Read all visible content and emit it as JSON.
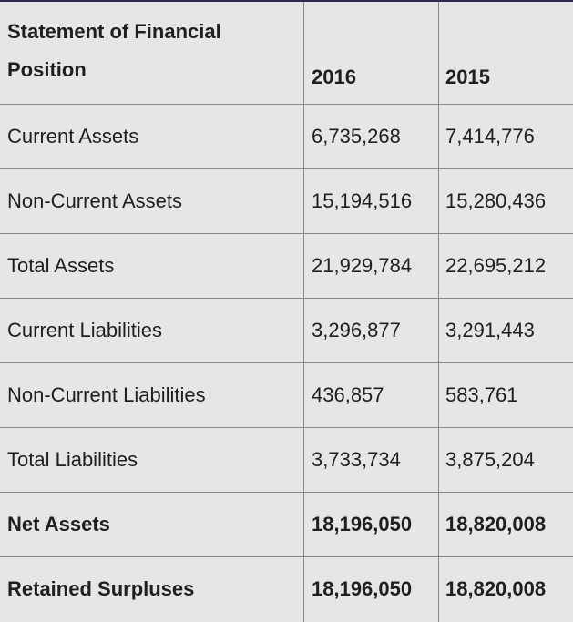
{
  "table": {
    "header": {
      "label": "Statement of Financial Position",
      "col_2016": "2016",
      "col_2015": "2015"
    },
    "rows": [
      {
        "label": "Current Assets",
        "v2016": "6,735,268",
        "v2015": "7,414,776"
      },
      {
        "label": "Non-Current Assets",
        "v2016": "15,194,516",
        "v2015": "15,280,436"
      },
      {
        "label": "Total Assets",
        "v2016": "21,929,784",
        "v2015": "22,695,212"
      },
      {
        "label": "Current Liabilities",
        "v2016": "3,296,877",
        "v2015": "3,291,443"
      },
      {
        "label": "Non-Current Liabilities",
        "v2016": "436,857",
        "v2015": "583,761"
      },
      {
        "label": "Total Liabilities",
        "v2016": "3,733,734",
        "v2015": "3,875,204"
      },
      {
        "label": "Net Assets",
        "v2016": "18,196,050",
        "v2015": "18,820,008"
      },
      {
        "label": "Retained Surpluses",
        "v2016": "18,196,050",
        "v2015": "18,820,008"
      }
    ]
  },
  "colors": {
    "background": "#e6e6e6",
    "grid": "#8a8a8a",
    "top_border": "#2f2a4f",
    "text": "#1f1f1f"
  }
}
